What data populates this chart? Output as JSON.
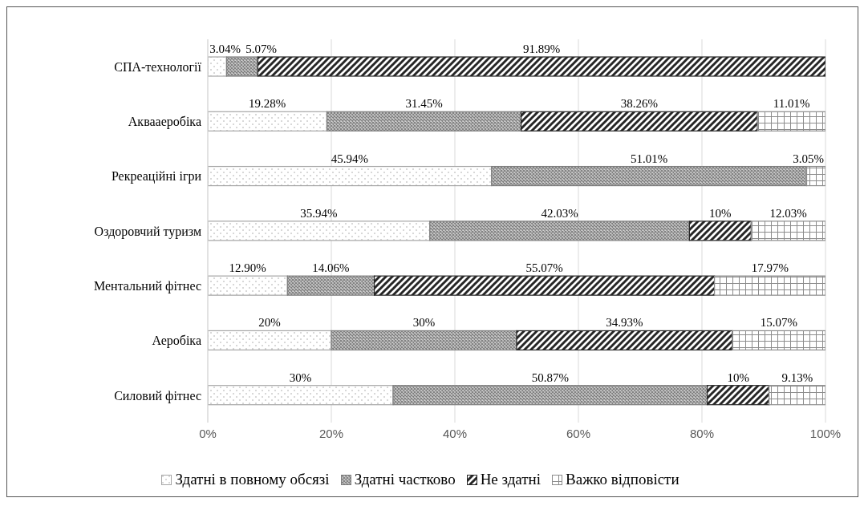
{
  "chart_data": {
    "type": "bar",
    "orientation": "horizontal",
    "stacked": true,
    "categories": [
      "СПА-технології",
      "Аквааеробіка",
      "Рекреаційні ігри",
      "Оздоровчий туризм",
      "Ментальний фітнес",
      "Аеробіка",
      "Силовий фітнес"
    ],
    "series": [
      {
        "name": "Здатні в повному обсязі",
        "color": "#a6a6a6",
        "values": [
          3.04,
          19.28,
          45.94,
          35.94,
          12.9,
          20,
          30
        ],
        "value_labels": [
          "3.04%",
          "19.28%",
          "45.94%",
          "35.94%",
          "12.90%",
          "20%",
          "30%"
        ]
      },
      {
        "name": "Здатні частково",
        "color": "#7f7f7f",
        "values": [
          5.07,
          31.45,
          51.01,
          42.03,
          14.06,
          30,
          50.87
        ],
        "value_labels": [
          "5.07%",
          "31.45%",
          "51.01%",
          "42.03%",
          "14.06%",
          "30%",
          "50.87%"
        ]
      },
      {
        "name": "Не здатні",
        "color": "#262626",
        "values": [
          91.89,
          38.26,
          null,
          10,
          55.07,
          34.93,
          10
        ],
        "value_labels": [
          "91.89%",
          "38.26%",
          null,
          "10%",
          "55.07%",
          "34.93%",
          "10%"
        ]
      },
      {
        "name": "Важко відповісти",
        "color": "#8c8c8c",
        "values": [
          null,
          11.01,
          3.05,
          12.03,
          17.97,
          15.07,
          9.13
        ],
        "value_labels": [
          null,
          "11.01%",
          "3.05%",
          "12.03%",
          "17.97%",
          "15.07%",
          "9.13%"
        ]
      }
    ],
    "xlim": [
      0,
      100
    ],
    "xticks": [
      {
        "value": 0,
        "label": "0%"
      },
      {
        "value": 20,
        "label": "20%"
      },
      {
        "value": 40,
        "label": "40%"
      },
      {
        "value": 60,
        "label": "60%"
      },
      {
        "value": 80,
        "label": "80%"
      },
      {
        "value": 100,
        "label": "100%"
      }
    ],
    "grid": "x",
    "legend": "bottom"
  }
}
